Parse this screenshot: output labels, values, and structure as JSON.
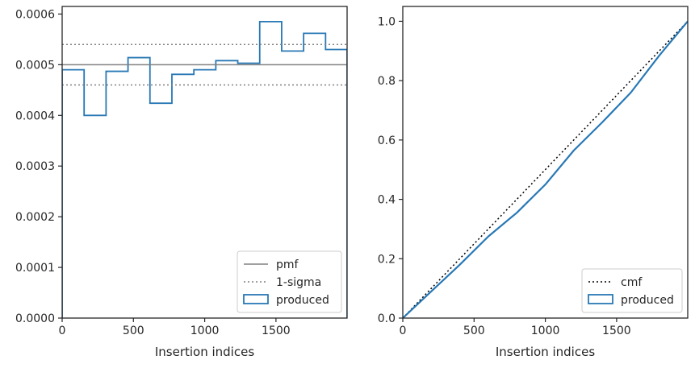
{
  "chart_data": [
    {
      "type": "histogram",
      "xlabel": "Insertion indices",
      "ylabel": "",
      "xlim": [
        0,
        1999
      ],
      "ylim": [
        0,
        0.000615
      ],
      "xticks": [
        0,
        500,
        1000,
        1500
      ],
      "xtick_labels": [
        "0",
        "500",
        "1000",
        "1500"
      ],
      "yticks": [
        0,
        0.0001,
        0.0002,
        0.0003,
        0.0004,
        0.0005,
        0.0006
      ],
      "ytick_labels": [
        "0.0000",
        "0.0001",
        "0.0002",
        "0.0003",
        "0.0004",
        "0.0005",
        "0.0006"
      ],
      "bin_edges": [
        0,
        154,
        308,
        462,
        616,
        770,
        924,
        1078,
        1232,
        1386,
        1540,
        1694,
        1848,
        1999
      ],
      "series": [
        {
          "name": "produced",
          "style": "step",
          "color": "#2878b5",
          "values": [
            0.00049,
            0.0004,
            0.000487,
            0.000514,
            0.000424,
            0.000481,
            0.00049,
            0.000508,
            0.000503,
            0.000585,
            0.000527,
            0.000562,
            0.00053
          ]
        },
        {
          "name": "pmf",
          "style": "hline",
          "color": "#808080",
          "value": 0.0005
        },
        {
          "name": "1-sigma",
          "style": "dotted-hlines",
          "color": "#808080",
          "values": [
            0.00046,
            0.00054
          ]
        }
      ],
      "legend": {
        "position": "lower-right",
        "entries": [
          "pmf",
          "1-sigma",
          "produced"
        ]
      }
    },
    {
      "type": "line",
      "xlabel": "Insertion indices",
      "ylabel": "",
      "xlim": [
        0,
        1999
      ],
      "ylim": [
        0,
        1.05
      ],
      "xticks": [
        0,
        500,
        1000,
        1500
      ],
      "xtick_labels": [
        "0",
        "500",
        "1000",
        "1500"
      ],
      "yticks": [
        0,
        0.2,
        0.4,
        0.6,
        0.8,
        1.0
      ],
      "ytick_labels": [
        "0.0",
        "0.2",
        "0.4",
        "0.6",
        "0.8",
        "1.0"
      ],
      "series": [
        {
          "name": "cmf",
          "style": "dotted",
          "color": "#000000",
          "x": [
            0,
            1999
          ],
          "y": [
            0,
            1.0
          ]
        },
        {
          "name": "produced",
          "style": "step",
          "color": "#2878b5",
          "x": [
            0,
            200,
            400,
            600,
            800,
            1000,
            1200,
            1400,
            1600,
            1800,
            1999
          ],
          "y": [
            0,
            0.09,
            0.18,
            0.275,
            0.355,
            0.45,
            0.565,
            0.66,
            0.76,
            0.885,
            1.0
          ]
        }
      ],
      "legend": {
        "position": "lower-right",
        "entries": [
          "cmf",
          "produced"
        ]
      }
    }
  ]
}
